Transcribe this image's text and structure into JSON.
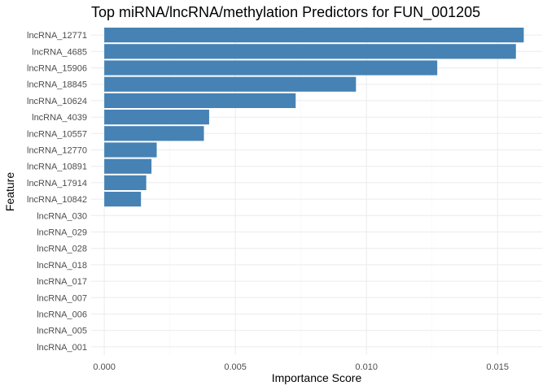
{
  "chart_data": {
    "type": "bar",
    "orientation": "horizontal",
    "title": "Top miRNA/lncRNA/methylation Predictors for FUN_001205",
    "xlabel": "Importance Score",
    "ylabel": "Feature",
    "bar_color": "#4682b4",
    "grid": true,
    "xlim": [
      -0.0005,
      0.0167
    ],
    "x_ticks": [
      0.0,
      0.005,
      0.01,
      0.015
    ],
    "x_tick_labels": [
      "0.000",
      "0.005",
      "0.010",
      "0.015"
    ],
    "categories": [
      "lncRNA_12771",
      "lncRNA_4685",
      "lncRNA_15906",
      "lncRNA_18845",
      "lncRNA_10624",
      "lncRNA_4039",
      "lncRNA_10557",
      "lncRNA_12770",
      "lncRNA_10891",
      "lncRNA_17914",
      "lncRNA_10842",
      "lncRNA_030",
      "lncRNA_029",
      "lncRNA_028",
      "lncRNA_018",
      "lncRNA_017",
      "lncRNA_007",
      "lncRNA_006",
      "lncRNA_005",
      "lncRNA_001"
    ],
    "values": [
      0.016,
      0.0157,
      0.0127,
      0.0096,
      0.0073,
      0.004,
      0.0038,
      0.002,
      0.0018,
      0.0016,
      0.0014,
      0,
      0,
      0,
      0,
      0,
      0,
      0,
      0,
      0
    ]
  }
}
